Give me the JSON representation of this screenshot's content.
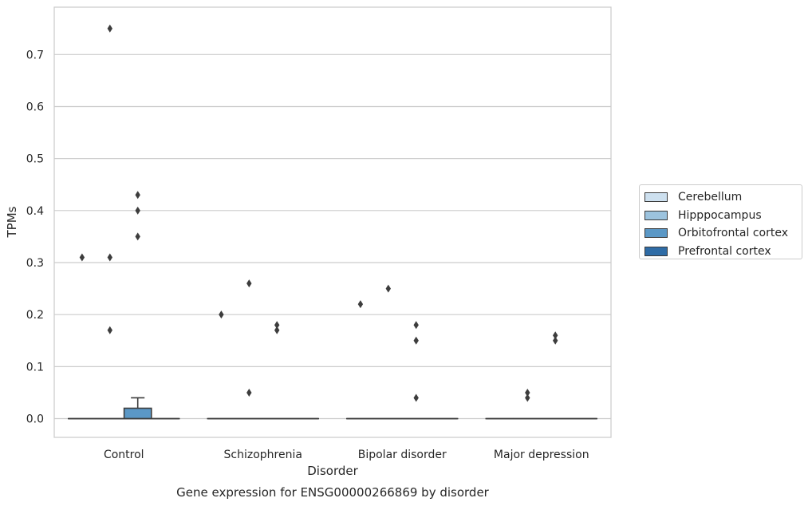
{
  "chart_data": {
    "type": "box",
    "title": "Gene expression for ENSG00000266869 by disorder",
    "xlabel": "Disorder",
    "ylabel": "TPMs",
    "categories": [
      "Control",
      "Schizophrenia",
      "Bipolar disorder",
      "Major depression"
    ],
    "yticks": [
      "0.0",
      "0.1",
      "0.2",
      "0.3",
      "0.4",
      "0.5",
      "0.6",
      "0.7"
    ],
    "ylim": [
      -0.036,
      0.791
    ],
    "grid": "horizontal",
    "legend_position": "right",
    "series": [
      {
        "name": "Cerebellum",
        "color": "#cde0ef",
        "boxes": [
          {
            "q1": 0,
            "median": 0,
            "q3": 0,
            "whisker_low": 0,
            "whisker_high": 0,
            "outliers": [
              0.31
            ]
          },
          {
            "q1": 0,
            "median": 0,
            "q3": 0,
            "whisker_low": 0,
            "whisker_high": 0,
            "outliers": [
              0.2
            ]
          },
          {
            "q1": 0,
            "median": 0,
            "q3": 0,
            "whisker_low": 0,
            "whisker_high": 0,
            "outliers": [
              0.22
            ]
          },
          {
            "q1": 0,
            "median": 0,
            "q3": 0,
            "whisker_low": 0,
            "whisker_high": 0,
            "outliers": []
          }
        ]
      },
      {
        "name": "Hipppocampus",
        "color": "#9cc3de",
        "boxes": [
          {
            "q1": 0,
            "median": 0,
            "q3": 0,
            "whisker_low": 0,
            "whisker_high": 0,
            "outliers": [
              0.75,
              0.31,
              0.17
            ]
          },
          {
            "q1": 0,
            "median": 0,
            "q3": 0,
            "whisker_low": 0,
            "whisker_high": 0,
            "outliers": [
              0.26,
              0.05
            ]
          },
          {
            "q1": 0,
            "median": 0,
            "q3": 0,
            "whisker_low": 0,
            "whisker_high": 0,
            "outliers": [
              0.25
            ]
          },
          {
            "q1": 0,
            "median": 0,
            "q3": 0,
            "whisker_low": 0,
            "whisker_high": 0,
            "outliers": [
              0.05,
              0.04
            ]
          }
        ]
      },
      {
        "name": "Orbitofrontal cortex",
        "color": "#5b98c6",
        "boxes": [
          {
            "q1": 0,
            "median": 0,
            "q3": 0.02,
            "whisker_low": 0,
            "whisker_high": 0.04,
            "outliers": [
              0.43,
              0.4,
              0.35
            ]
          },
          {
            "q1": 0,
            "median": 0,
            "q3": 0,
            "whisker_low": 0,
            "whisker_high": 0,
            "outliers": [
              0.18,
              0.17
            ]
          },
          {
            "q1": 0,
            "median": 0,
            "q3": 0,
            "whisker_low": 0,
            "whisker_high": 0,
            "outliers": [
              0.18,
              0.15,
              0.04
            ]
          },
          {
            "q1": 0,
            "median": 0,
            "q3": 0,
            "whisker_low": 0,
            "whisker_high": 0,
            "outliers": [
              0.16,
              0.15
            ]
          }
        ]
      },
      {
        "name": "Prefrontal cortex",
        "color": "#2f6ca6",
        "boxes": [
          {
            "q1": 0,
            "median": 0,
            "q3": 0,
            "whisker_low": 0,
            "whisker_high": 0,
            "outliers": []
          },
          {
            "q1": 0,
            "median": 0,
            "q3": 0,
            "whisker_low": 0,
            "whisker_high": 0,
            "outliers": []
          },
          {
            "q1": 0,
            "median": 0,
            "q3": 0,
            "whisker_low": 0,
            "whisker_high": 0,
            "outliers": []
          },
          {
            "q1": 0,
            "median": 0,
            "q3": 0,
            "whisker_low": 0,
            "whisker_high": 0,
            "outliers": []
          }
        ]
      }
    ]
  }
}
